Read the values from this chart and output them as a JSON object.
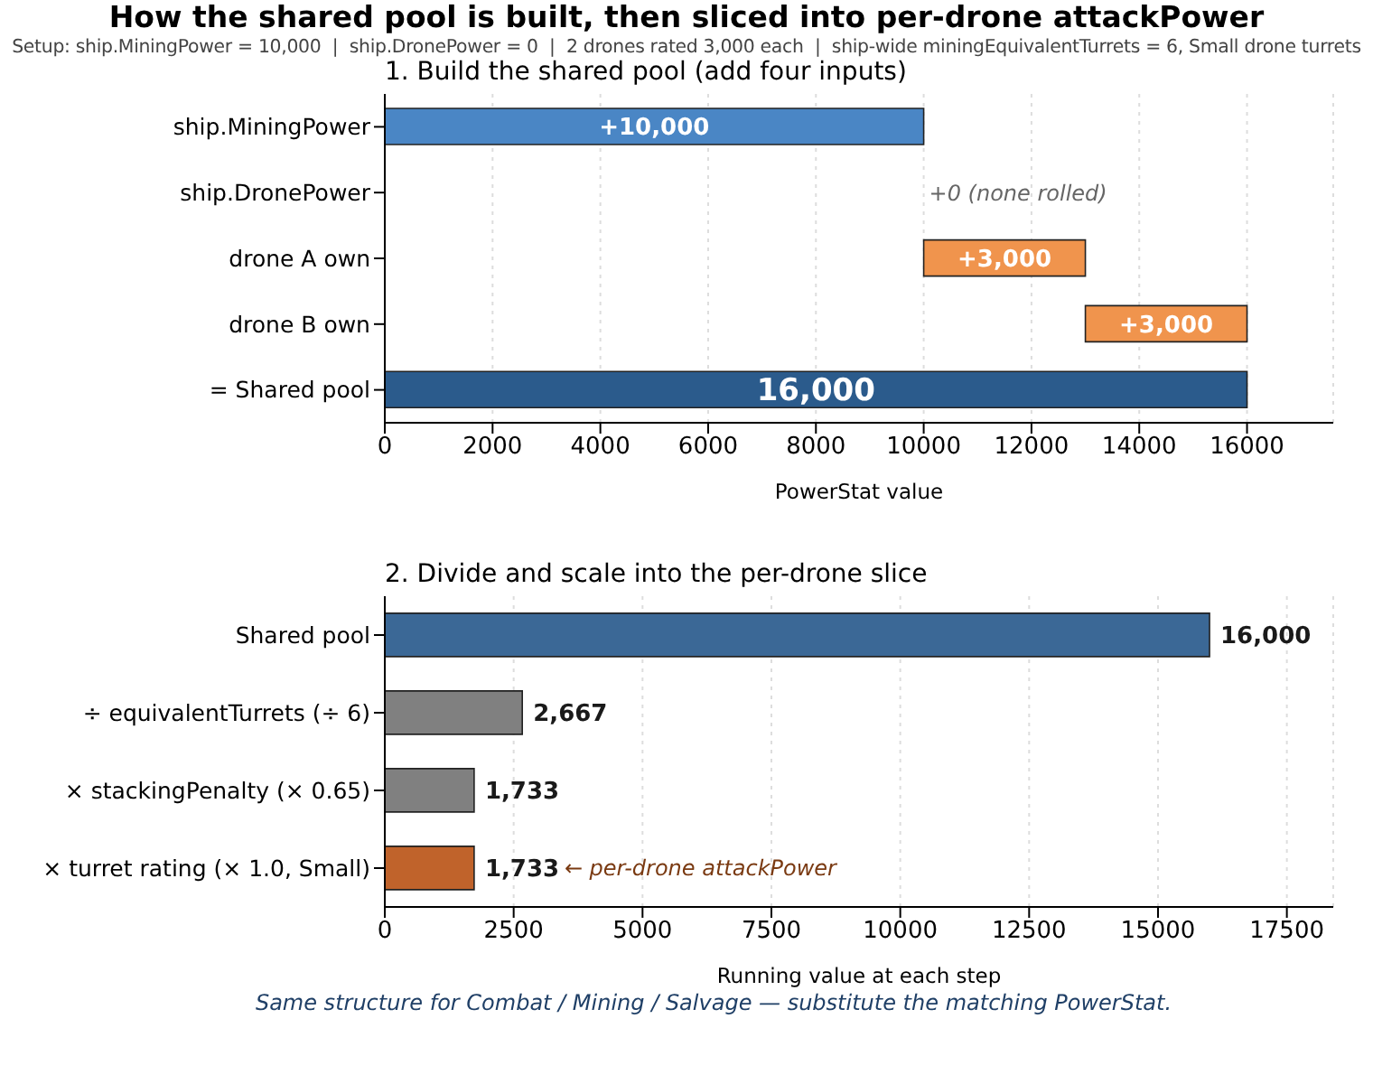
{
  "chart_data": [
    {
      "type": "bar",
      "orientation": "horizontal",
      "title": "How the shared pool is built, then sliced into per-drone attackPower",
      "subtitle": "Setup: ship.MiningPower = 10,000  |  ship.DronePower = 0  |  2 drones rated 3,000 each  |  ship-wide miningEquivalentTurrets = 6, Small drone turrets",
      "annotations": [
        "1. Build the shared pool (add four inputs)",
        "+0 (none rolled)"
      ],
      "xlabel": "PowerStat value",
      "categories": [
        "ship.MiningPower",
        "ship.DronePower",
        "drone A own",
        "drone B own",
        "= Shared pool"
      ],
      "values": [
        10000,
        0,
        3000,
        3000,
        16000
      ],
      "base": [
        0,
        null,
        10000,
        13000,
        0
      ],
      "colors": [
        "#4a86c5",
        "#808080",
        "#f0944d",
        "#f0944d",
        "#2b5b8c"
      ],
      "value_labels": [
        "+10,000",
        null,
        "+3,000",
        "+3,000",
        "16,000"
      ],
      "xlim": [
        0,
        17600
      ],
      "xticks": [
        0,
        2000,
        4000,
        6000,
        8000,
        10000,
        12000,
        14000,
        16000
      ],
      "grid": "x",
      "legend": false
    },
    {
      "type": "bar",
      "orientation": "horizontal",
      "title": "2. Divide and scale into the per-drone slice",
      "xlabel": "Running value at each step",
      "categories": [
        "Shared pool",
        "÷ equivalentTurrets (÷ 6)",
        "× stackingPenalty (× 0.65)",
        "× turret rating (× 1.0, Small)"
      ],
      "values": [
        16000,
        2667,
        1733,
        1733
      ],
      "colors": [
        "#3b6896",
        "#808080",
        "#808080",
        "#c0632b"
      ],
      "value_labels": [
        "16,000",
        "2,667",
        "1,733",
        "1,733"
      ],
      "annotations": [
        "← per-drone attackPower",
        "Same structure for Combat / Mining / Salvage — substitute the matching PowerStat."
      ],
      "xlim": [
        0,
        18400
      ],
      "xticks": [
        0,
        2500,
        5000,
        7500,
        10000,
        12500,
        15000,
        17500
      ],
      "grid": "x",
      "legend": false
    }
  ]
}
